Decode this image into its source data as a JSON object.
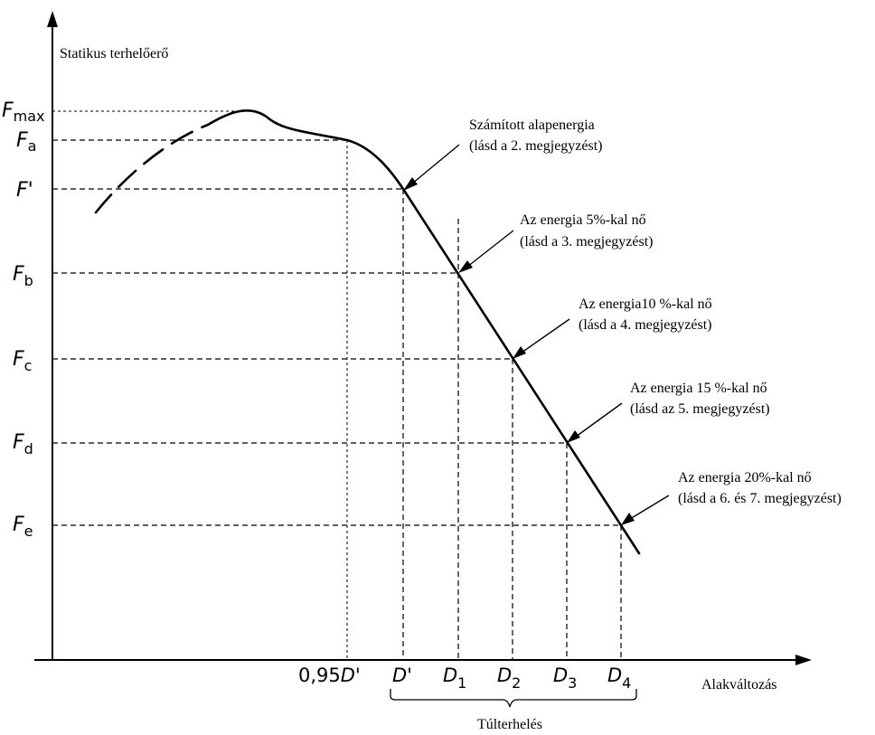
{
  "axes": {
    "y_title": "Statikus terhelőerő",
    "x_title": "Alakváltozás"
  },
  "force_labels": {
    "fmax": {
      "main": "F",
      "sub": "max"
    },
    "fa": {
      "main": "F",
      "sub": "a"
    },
    "fprime": {
      "main": "F'",
      "sub": ""
    },
    "fb": {
      "main": "F",
      "sub": "b"
    },
    "fc": {
      "main": "F",
      "sub": "c"
    },
    "fd": {
      "main": "F",
      "sub": "d"
    },
    "fe": {
      "main": "F",
      "sub": "e"
    }
  },
  "deformation_labels": {
    "d095": {
      "prefix": "0,95",
      "main": "D'",
      "sub": ""
    },
    "dprime": {
      "prefix": "",
      "main": "D'",
      "sub": ""
    },
    "d1": {
      "prefix": "",
      "main": "D",
      "sub": "1"
    },
    "d2": {
      "prefix": "",
      "main": "D",
      "sub": "2"
    },
    "d3": {
      "prefix": "",
      "main": "D",
      "sub": "3"
    },
    "d4": {
      "prefix": "",
      "main": "D",
      "sub": "4"
    }
  },
  "annotations": [
    {
      "line1": "Számított alapenergia",
      "line2": "(lásd a 2. megjegyzést)"
    },
    {
      "line1": "Az energia 5%-kal nő",
      "line2": "(lásd a 3. megjegyzést)"
    },
    {
      "line1": "Az energia10 %-kal nő",
      "line2": "(lásd a 4. megjegyzést)"
    },
    {
      "line1": "Az energia 15 %-kal nő",
      "line2": "(lásd az 5. megjegyzést)"
    },
    {
      "line1": "Az energia 20%-kal nő",
      "line2": "(lásd a 6. és 7. megjegyzést)"
    }
  ],
  "overload_label": "Túlterhelés"
}
